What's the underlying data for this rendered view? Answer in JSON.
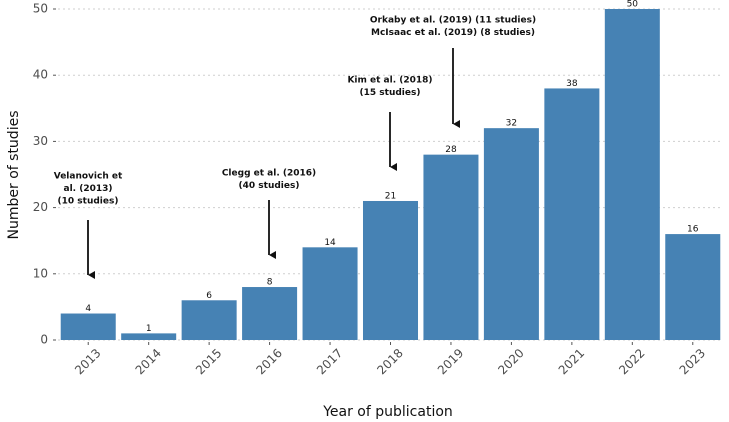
{
  "chart_data": {
    "type": "bar",
    "x_label": "Year of publication",
    "y_label": "Number of studies",
    "categories": [
      "2013",
      "2014",
      "2015",
      "2016",
      "2017",
      "2018",
      "2019",
      "2020",
      "2021",
      "2022",
      "2023"
    ],
    "values": [
      4,
      1,
      6,
      8,
      14,
      21,
      28,
      32,
      38,
      50,
      16
    ],
    "color": "#4682b4",
    "ylim": [
      0,
      50
    ],
    "yticks": [
      0,
      10,
      20,
      30,
      40,
      50
    ],
    "grid": true,
    "annotations": [
      {
        "lines": [
          "Velanovich et",
          "al. (2013)",
          "(10 studies)"
        ]
      },
      {
        "lines": [
          "Clegg et al. (2016)",
          "(40 studies)"
        ]
      },
      {
        "lines": [
          "Kim et al. (2018)",
          "(15 studies)"
        ]
      },
      {
        "lines": [
          "Orkaby et al. (2019) (11 studies)",
          "McIsaac et al. (2019) (8 studies)"
        ]
      }
    ]
  }
}
